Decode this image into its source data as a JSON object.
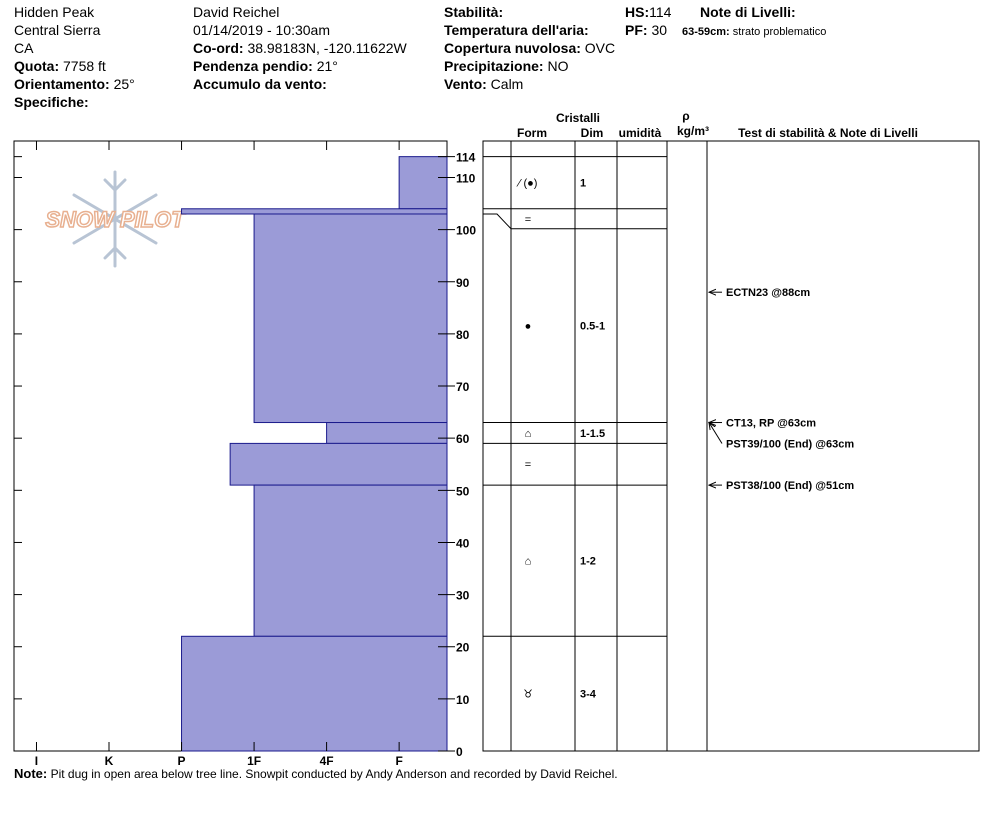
{
  "header": {
    "site": "Hidden Peak",
    "range": "Central Sierra",
    "state": "CA",
    "elevation": {
      "label": "Quota:",
      "value": "7758 ft"
    },
    "aspect": {
      "label": "Orientamento:",
      "value": "25°"
    },
    "specifics": {
      "label": "Specifiche:"
    },
    "observer": "David Reichel",
    "datetime": "01/14/2019 - 10:30am",
    "coords": {
      "label": "Co-ord:",
      "value": "38.98183N, -120.11622W"
    },
    "slope": {
      "label": "Pendenza pendio:",
      "value": "21°"
    },
    "wind_loading": {
      "label": "Accumulo da vento:"
    },
    "stability": {
      "label": "Stabilità:"
    },
    "air_temp": {
      "label": "Temperatura dell'aria:"
    },
    "sky": {
      "label": "Copertura nuvolosa:",
      "value": "OVC"
    },
    "precip": {
      "label": "Precipitazione:",
      "value": "NO"
    },
    "wind": {
      "label": "Vento:",
      "value": "Calm"
    },
    "hs": {
      "label": "HS:",
      "value": "114"
    },
    "pf": {
      "label": "PF:",
      "value": "30"
    },
    "layer_notes": {
      "label": "Note di Livelli:",
      "range": "63-59cm:",
      "text": "strato problematico"
    }
  },
  "logo": "SNOW PILOT",
  "columns": {
    "crystals": "Cristalli",
    "form": "Form",
    "size": "Dim",
    "moisture": "umidità",
    "density_symbol": "ρ",
    "density_unit": "kg/m³",
    "tests": "Test di stabilità & Note di Livelli"
  },
  "chart_data": {
    "type": "snowpit",
    "ylim": [
      0,
      117
    ],
    "yticks": [
      0,
      10,
      20,
      30,
      40,
      50,
      60,
      70,
      80,
      90,
      100,
      110,
      114
    ],
    "xlim": [
      6.31,
      0.34
    ],
    "xticks": [
      {
        "value": 6,
        "label": "I"
      },
      {
        "value": 5,
        "label": "K"
      },
      {
        "value": 4,
        "label": "P"
      },
      {
        "value": 3,
        "label": "1F"
      },
      {
        "value": 2,
        "label": "4F"
      },
      {
        "value": 1,
        "label": "F"
      }
    ],
    "color": "#9b9bd7",
    "layers": [
      {
        "top": 114,
        "bottom": 104,
        "hardness": 1,
        "form": "⁄ (●)",
        "size": "1"
      },
      {
        "top": 104,
        "bottom": 103,
        "hardness": 4,
        "form": "="
      },
      {
        "top": 103,
        "bottom": 63,
        "hardness": 3,
        "form": "●",
        "size": "0.5-1"
      },
      {
        "top": 63,
        "bottom": 59,
        "hardness": 2,
        "form": "⌂",
        "size": "1-1.5"
      },
      {
        "top": 59,
        "bottom": 51,
        "hardness": 3.33,
        "form": "="
      },
      {
        "top": 51,
        "bottom": 22,
        "hardness": 3,
        "form": "⌂",
        "size": "1-2"
      },
      {
        "top": 22,
        "bottom": 0,
        "hardness": 4,
        "form": "♉",
        "size": "3-4"
      }
    ],
    "tests": [
      {
        "label": "ECTN23 @88cm",
        "depth": 88
      },
      {
        "label": "CT13, RP @63cm",
        "depth": 63
      },
      {
        "label": "PST39/100 (End) @63cm",
        "depth": 63
      },
      {
        "label": "PST38/100 (End) @51cm",
        "depth": 51
      }
    ]
  },
  "note": {
    "label": "Note:",
    "text": "Pit dug in open area below tree line. Snowpit conducted by Andy Anderson and recorded by David Reichel."
  }
}
